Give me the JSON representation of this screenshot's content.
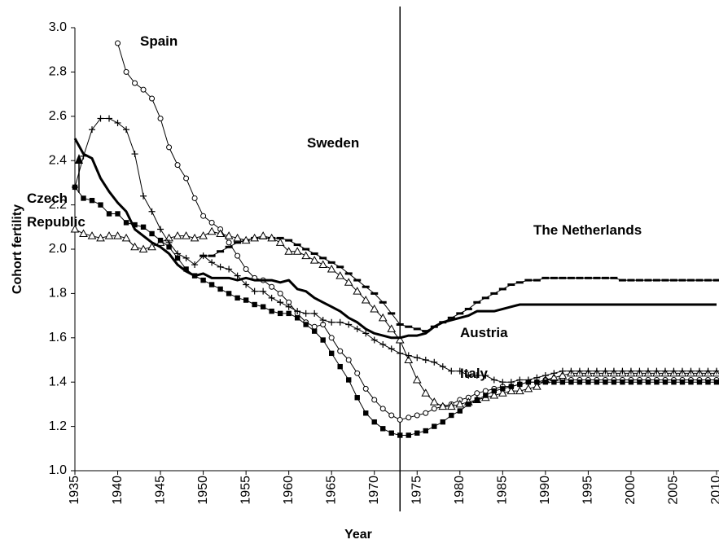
{
  "chart_data": {
    "type": "line",
    "x_label": "Year",
    "y_label": "Cohort fertility",
    "x": [
      1935,
      1936,
      1937,
      1938,
      1939,
      1940,
      1941,
      1942,
      1943,
      1944,
      1945,
      1946,
      1947,
      1948,
      1949,
      1950,
      1951,
      1952,
      1953,
      1954,
      1955,
      1956,
      1957,
      1958,
      1959,
      1960,
      1961,
      1962,
      1963,
      1964,
      1965,
      1966,
      1967,
      1968,
      1969,
      1970,
      1971,
      1972,
      1973,
      1974,
      1975,
      1976,
      1977,
      1978,
      1979,
      1980,
      1981,
      1982,
      1983,
      1984,
      1985,
      1986,
      1987,
      1988,
      1989,
      1990,
      1991,
      1992,
      1993,
      1994,
      1995,
      1996,
      1997,
      1998,
      1999,
      2000,
      2001,
      2002,
      2003,
      2004,
      2005,
      2006,
      2007,
      2008,
      2009,
      2010
    ],
    "xlim": [
      1935,
      2010
    ],
    "xticks": [
      1935,
      1940,
      1945,
      1950,
      1955,
      1960,
      1965,
      1970,
      1975,
      1980,
      1985,
      1990,
      1995,
      2000,
      2005,
      2010
    ],
    "ylim": [
      1,
      3
    ],
    "yticks": [
      {
        "value": 1,
        "label": "1.0"
      },
      {
        "value": 1.2,
        "label": "1.2"
      },
      {
        "value": 1.4,
        "label": "1.4"
      },
      {
        "value": 1.6,
        "label": "1.6"
      },
      {
        "value": 1.8,
        "label": "1.8"
      },
      {
        "value": 2,
        "label": "2.0"
      },
      {
        "value": 2.2,
        "label": "2.2"
      },
      {
        "value": 2.4,
        "label": "2.4"
      },
      {
        "value": 2.6,
        "label": "2.6"
      },
      {
        "value": 2.8,
        "label": "2.8"
      },
      {
        "value": 3,
        "label": "3.0"
      }
    ],
    "grid": false,
    "vline_x": 1973,
    "series": [
      {
        "name": "Spain",
        "color": "#000000",
        "marker": "circle-open",
        "line_width": 1,
        "values": [
          null,
          null,
          null,
          null,
          null,
          2.93,
          2.8,
          2.75,
          2.72,
          2.68,
          2.59,
          2.46,
          2.38,
          2.32,
          2.23,
          2.15,
          2.12,
          2.09,
          2.03,
          1.97,
          1.91,
          1.87,
          1.86,
          1.83,
          1.8,
          1.76,
          1.71,
          1.67,
          1.65,
          1.66,
          1.6,
          1.54,
          1.5,
          1.44,
          1.37,
          1.32,
          1.28,
          1.25,
          1.23,
          1.24,
          1.25,
          1.26,
          1.28,
          1.29,
          1.3,
          1.32,
          1.33,
          1.35,
          1.36,
          1.37,
          1.38,
          1.38,
          1.39,
          1.4,
          1.4,
          1.41,
          1.41,
          1.41,
          1.41,
          1.41,
          1.41,
          1.41,
          1.41,
          1.41,
          1.41,
          1.41,
          1.41,
          1.41,
          1.41,
          1.41,
          1.41,
          1.41,
          1.41,
          1.41,
          1.41,
          1.41
        ]
      },
      {
        "name": "Sweden",
        "color": "#000000",
        "marker": "dash",
        "line_width": 1,
        "values": [
          null,
          null,
          null,
          null,
          null,
          null,
          null,
          null,
          null,
          null,
          null,
          null,
          null,
          null,
          null,
          1.97,
          1.97,
          1.99,
          2.01,
          2.03,
          2.04,
          2.05,
          2.05,
          2.05,
          2.05,
          2.04,
          2.02,
          2.0,
          1.98,
          1.96,
          1.94,
          1.92,
          1.89,
          1.86,
          1.83,
          1.8,
          1.76,
          1.71,
          1.66,
          1.65,
          1.64,
          1.63,
          1.65,
          1.67,
          1.69,
          1.71,
          1.73,
          1.76,
          1.78,
          1.8,
          1.82,
          1.84,
          1.85,
          1.86,
          1.86,
          1.87,
          1.87,
          1.87,
          1.87,
          1.87,
          1.87,
          1.87,
          1.87,
          1.87,
          1.86,
          1.86,
          1.86,
          1.86,
          1.86,
          1.86,
          1.86,
          1.86,
          1.86,
          1.86,
          1.86,
          1.86
        ]
      },
      {
        "name": "Czech Republic",
        "color": "#000000",
        "marker": "triangle-open",
        "line_width": 1,
        "values": [
          2.09,
          2.07,
          2.06,
          2.05,
          2.06,
          2.06,
          2.05,
          2.01,
          2.0,
          2.01,
          2.03,
          2.05,
          2.06,
          2.06,
          2.05,
          2.06,
          2.08,
          2.07,
          2.06,
          2.05,
          2.04,
          2.05,
          2.06,
          2.05,
          2.03,
          1.99,
          1.99,
          1.97,
          1.95,
          1.93,
          1.91,
          1.88,
          1.85,
          1.81,
          1.77,
          1.73,
          1.69,
          1.64,
          1.59,
          1.5,
          1.41,
          1.35,
          1.31,
          1.29,
          1.29,
          1.3,
          1.31,
          1.32,
          1.33,
          1.34,
          1.35,
          1.36,
          1.36,
          1.37,
          1.38,
          1.41,
          1.42,
          1.43,
          1.44,
          1.44,
          1.44,
          1.44,
          1.44,
          1.44,
          1.44,
          1.44,
          1.44,
          1.44,
          1.44,
          1.44,
          1.44,
          1.44,
          1.44,
          1.44,
          1.44,
          1.44
        ]
      },
      {
        "name": "The Netherlands",
        "color": "#000000",
        "marker": "none",
        "line_width": 3,
        "values": [
          2.5,
          2.43,
          2.41,
          2.32,
          2.26,
          2.21,
          2.17,
          2.09,
          2.06,
          2.03,
          2.01,
          1.98,
          1.93,
          1.9,
          1.88,
          1.89,
          1.87,
          1.87,
          1.87,
          1.86,
          1.87,
          1.86,
          1.86,
          1.86,
          1.85,
          1.86,
          1.82,
          1.81,
          1.78,
          1.76,
          1.74,
          1.72,
          1.69,
          1.67,
          1.64,
          1.62,
          1.61,
          1.6,
          1.6,
          1.61,
          1.61,
          1.62,
          1.65,
          1.67,
          1.68,
          1.69,
          1.7,
          1.72,
          1.72,
          1.72,
          1.73,
          1.74,
          1.75,
          1.75,
          1.75,
          1.75,
          1.75,
          1.75,
          1.75,
          1.75,
          1.75,
          1.75,
          1.75,
          1.75,
          1.75,
          1.75,
          1.75,
          1.75,
          1.75,
          1.75,
          1.75,
          1.75,
          1.75,
          1.75,
          1.75,
          1.75
        ]
      },
      {
        "name": "Austria",
        "color": "#000000",
        "marker": "plus",
        "line_width": 1,
        "values": [
          2.28,
          2.42,
          2.54,
          2.59,
          2.59,
          2.57,
          2.54,
          2.43,
          2.24,
          2.17,
          2.09,
          2.03,
          1.98,
          1.96,
          1.93,
          1.97,
          1.94,
          1.92,
          1.91,
          1.88,
          1.84,
          1.81,
          1.81,
          1.78,
          1.76,
          1.74,
          1.72,
          1.71,
          1.71,
          1.68,
          1.67,
          1.67,
          1.66,
          1.64,
          1.62,
          1.59,
          1.57,
          1.55,
          1.53,
          1.52,
          1.51,
          1.5,
          1.49,
          1.47,
          1.45,
          1.45,
          1.43,
          1.43,
          1.43,
          1.41,
          1.4,
          1.4,
          1.41,
          1.41,
          1.42,
          1.43,
          1.44,
          1.45,
          1.45,
          1.45,
          1.45,
          1.45,
          1.45,
          1.45,
          1.45,
          1.45,
          1.45,
          1.45,
          1.45,
          1.45,
          1.45,
          1.45,
          1.45,
          1.45,
          1.45,
          1.45
        ]
      },
      {
        "name": "Italy",
        "color": "#000000",
        "marker": "square",
        "line_width": 1,
        "values": [
          2.28,
          2.23,
          2.22,
          2.2,
          2.16,
          2.16,
          2.12,
          2.11,
          2.1,
          2.07,
          2.04,
          2.01,
          1.96,
          1.91,
          1.88,
          1.86,
          1.84,
          1.82,
          1.8,
          1.78,
          1.77,
          1.75,
          1.74,
          1.72,
          1.71,
          1.71,
          1.69,
          1.66,
          1.63,
          1.59,
          1.53,
          1.47,
          1.41,
          1.33,
          1.26,
          1.22,
          1.19,
          1.17,
          1.16,
          1.16,
          1.17,
          1.18,
          1.2,
          1.22,
          1.25,
          1.27,
          1.3,
          1.32,
          1.34,
          1.36,
          1.37,
          1.38,
          1.39,
          1.4,
          1.4,
          1.4,
          1.4,
          1.4,
          1.4,
          1.4,
          1.4,
          1.4,
          1.4,
          1.4,
          1.4,
          1.4,
          1.4,
          1.4,
          1.4,
          1.4,
          1.4,
          1.4,
          1.4,
          1.4,
          1.4,
          1.4
        ]
      }
    ]
  }
}
